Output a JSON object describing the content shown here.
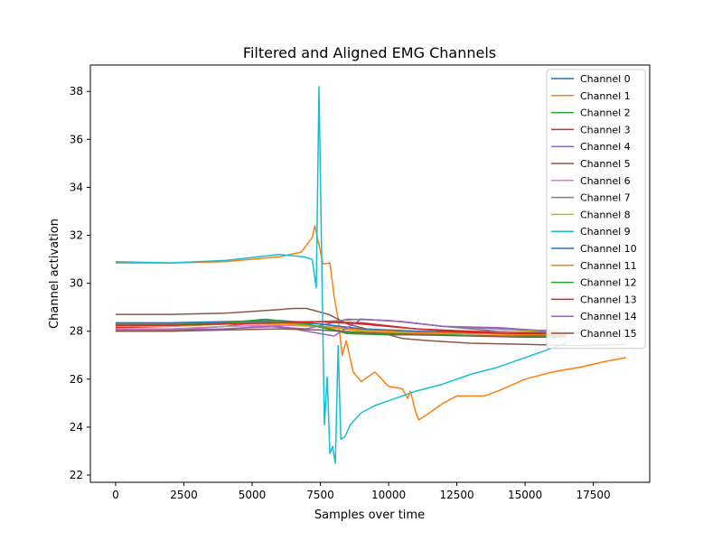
{
  "chart_data": {
    "type": "line",
    "title": "Filtered and Aligned EMG Channels",
    "xlabel": "Samples over time",
    "ylabel": "Channel activation",
    "xlim": [
      -925,
      19565
    ],
    "ylim": [
      21.7,
      39.1
    ],
    "xticks": [
      0,
      2500,
      5000,
      7500,
      10000,
      12500,
      15000,
      17500
    ],
    "xtick_labels": [
      "0",
      "2500",
      "5000",
      "7500",
      "10000",
      "12500",
      "15000",
      "17500"
    ],
    "yticks": [
      22,
      24,
      26,
      28,
      30,
      32,
      34,
      36,
      38
    ],
    "ytick_labels": [
      "22",
      "24",
      "26",
      "28",
      "30",
      "32",
      "34",
      "36",
      "38"
    ],
    "legend_position": "top-right",
    "grid": false,
    "series": [
      {
        "name": "Channel 0",
        "color": "#1f77b4",
        "x": [
          0,
          2000,
          4000,
          6000,
          7500,
          9000,
          11000,
          13000,
          15000,
          16500
        ],
        "y": [
          28.3,
          28.3,
          28.35,
          28.4,
          28.3,
          28.1,
          28.0,
          27.95,
          27.9,
          27.9
        ]
      },
      {
        "name": "Channel 1",
        "color": "#ff7f0e",
        "x": [
          0,
          2000,
          4000,
          6000,
          6800,
          7200,
          7300,
          7600,
          7850,
          8000,
          8150,
          8300,
          8450,
          8700,
          9000,
          9500,
          10000,
          10500,
          10700,
          10800,
          11000,
          11100,
          11500,
          12000,
          12500,
          13500,
          14000,
          15000,
          16000,
          17000,
          18000,
          18700
        ],
        "y": [
          30.85,
          30.85,
          30.9,
          31.1,
          31.3,
          31.9,
          32.4,
          30.8,
          30.85,
          29.5,
          28.5,
          27.0,
          27.6,
          26.3,
          25.9,
          26.3,
          25.7,
          25.6,
          25.2,
          25.5,
          24.6,
          24.3,
          24.6,
          25.0,
          25.3,
          25.3,
          25.5,
          26.0,
          26.3,
          26.5,
          26.75,
          26.9
        ]
      },
      {
        "name": "Channel 2",
        "color": "#2ca02c",
        "x": [
          0,
          2000,
          4000,
          5500,
          7000,
          8500,
          10000,
          12000,
          14000,
          16500
        ],
        "y": [
          28.05,
          28.05,
          28.2,
          28.4,
          28.3,
          27.9,
          27.85,
          27.85,
          27.8,
          27.75
        ]
      },
      {
        "name": "Channel 3",
        "color": "#d62728",
        "x": [
          0,
          2000,
          4000,
          6000,
          7500,
          9000,
          11000,
          13000,
          15000,
          16500
        ],
        "y": [
          28.15,
          28.2,
          28.3,
          28.35,
          28.4,
          28.35,
          28.1,
          28.0,
          27.95,
          27.9
        ]
      },
      {
        "name": "Channel 4",
        "color": "#9467bd",
        "x": [
          0,
          2000,
          4000,
          5500,
          7000,
          8500,
          10000,
          12000,
          14000,
          16000,
          17000
        ],
        "y": [
          28.0,
          28.0,
          28.1,
          28.2,
          28.1,
          28.5,
          28.45,
          28.2,
          28.1,
          28.0,
          27.9
        ]
      },
      {
        "name": "Channel 5",
        "color": "#8c564b",
        "x": [
          0,
          2000,
          4000,
          6000,
          6500,
          7000,
          7800,
          8500,
          9500,
          10500,
          11500,
          13000,
          15000,
          17000,
          18700
        ],
        "y": [
          28.7,
          28.7,
          28.75,
          28.9,
          28.95,
          28.95,
          28.7,
          28.3,
          28.0,
          27.7,
          27.6,
          27.5,
          27.45,
          27.4,
          27.45
        ]
      },
      {
        "name": "Channel 6",
        "color": "#e377c2",
        "x": [
          0,
          2000,
          4000,
          6000,
          7500,
          9000,
          11000,
          13000,
          15000,
          16500
        ],
        "y": [
          28.1,
          28.1,
          28.2,
          28.25,
          28.2,
          28.1,
          28.0,
          27.95,
          27.9,
          27.85
        ]
      },
      {
        "name": "Channel 7",
        "color": "#7f7f7f",
        "x": [
          0,
          2000,
          4000,
          6000,
          7500,
          9000,
          10500,
          12000,
          14000,
          16500
        ],
        "y": [
          28.3,
          28.3,
          28.35,
          28.4,
          28.4,
          28.5,
          28.4,
          28.2,
          28.0,
          27.95
        ]
      },
      {
        "name": "Channel 8",
        "color": "#bcbd22",
        "x": [
          0,
          2000,
          4000,
          6000,
          7500,
          9000,
          11000,
          13000,
          15000,
          16500
        ],
        "y": [
          28.2,
          28.2,
          28.3,
          28.3,
          28.2,
          28.0,
          27.9,
          27.9,
          28.0,
          28.1
        ]
      },
      {
        "name": "Channel 9",
        "color": "#17becf",
        "x": [
          0,
          2000,
          4000,
          6000,
          6900,
          7200,
          7350,
          7450,
          7550,
          7650,
          7750,
          7850,
          7950,
          8050,
          8150,
          8250,
          8400,
          8600,
          9000,
          9500,
          10000,
          10500,
          11000,
          12000,
          13000,
          14000,
          15000,
          16000,
          16500
        ],
        "y": [
          30.9,
          30.85,
          30.95,
          31.2,
          31.1,
          31.0,
          29.8,
          38.2,
          31.0,
          24.1,
          26.1,
          22.9,
          23.2,
          22.5,
          27.4,
          23.5,
          23.6,
          24.1,
          24.6,
          24.9,
          25.1,
          25.3,
          25.5,
          25.8,
          26.2,
          26.5,
          26.9,
          27.3,
          27.5
        ]
      },
      {
        "name": "Channel 10",
        "color": "#1f77b4",
        "x": [
          0,
          2000,
          4000,
          6000,
          7500,
          9000,
          11000,
          13000,
          15000,
          16500
        ],
        "y": [
          28.35,
          28.35,
          28.4,
          28.45,
          28.3,
          28.1,
          28.0,
          27.95,
          27.9,
          27.9
        ]
      },
      {
        "name": "Channel 11",
        "color": "#ff7f0e",
        "x": [
          0,
          2000,
          4000,
          6000,
          7500,
          9000,
          11000,
          13000,
          15000,
          16500
        ],
        "y": [
          28.2,
          28.25,
          28.3,
          28.35,
          28.2,
          28.05,
          27.95,
          27.9,
          27.85,
          27.85
        ]
      },
      {
        "name": "Channel 12",
        "color": "#2ca02c",
        "x": [
          0,
          2000,
          4000,
          5500,
          7000,
          8500,
          10000,
          12000,
          14000,
          16500
        ],
        "y": [
          28.25,
          28.25,
          28.35,
          28.5,
          28.3,
          27.95,
          27.9,
          27.85,
          27.8,
          27.8
        ]
      },
      {
        "name": "Channel 13",
        "color": "#d62728",
        "x": [
          0,
          2000,
          4000,
          6000,
          7500,
          9000,
          11000,
          13000,
          15000,
          16500
        ],
        "y": [
          28.25,
          28.25,
          28.3,
          28.35,
          28.4,
          28.3,
          28.1,
          27.95,
          27.9,
          27.9
        ]
      },
      {
        "name": "Channel 14",
        "color": "#9467bd",
        "x": [
          0,
          2000,
          4000,
          6000,
          7000,
          8000,
          9000,
          10500,
          12000,
          14000,
          16000,
          17000
        ],
        "y": [
          28.05,
          28.05,
          28.1,
          28.2,
          28.0,
          27.8,
          28.5,
          28.4,
          28.2,
          28.15,
          28.0,
          27.95
        ]
      },
      {
        "name": "Channel 15",
        "color": "#8c564b",
        "x": [
          0,
          2000,
          4000,
          6000,
          7500,
          9000,
          11000,
          13000,
          15000,
          16500
        ],
        "y": [
          28.0,
          28.0,
          28.05,
          28.1,
          28.05,
          27.95,
          27.85,
          27.8,
          27.75,
          27.75
        ]
      }
    ]
  }
}
